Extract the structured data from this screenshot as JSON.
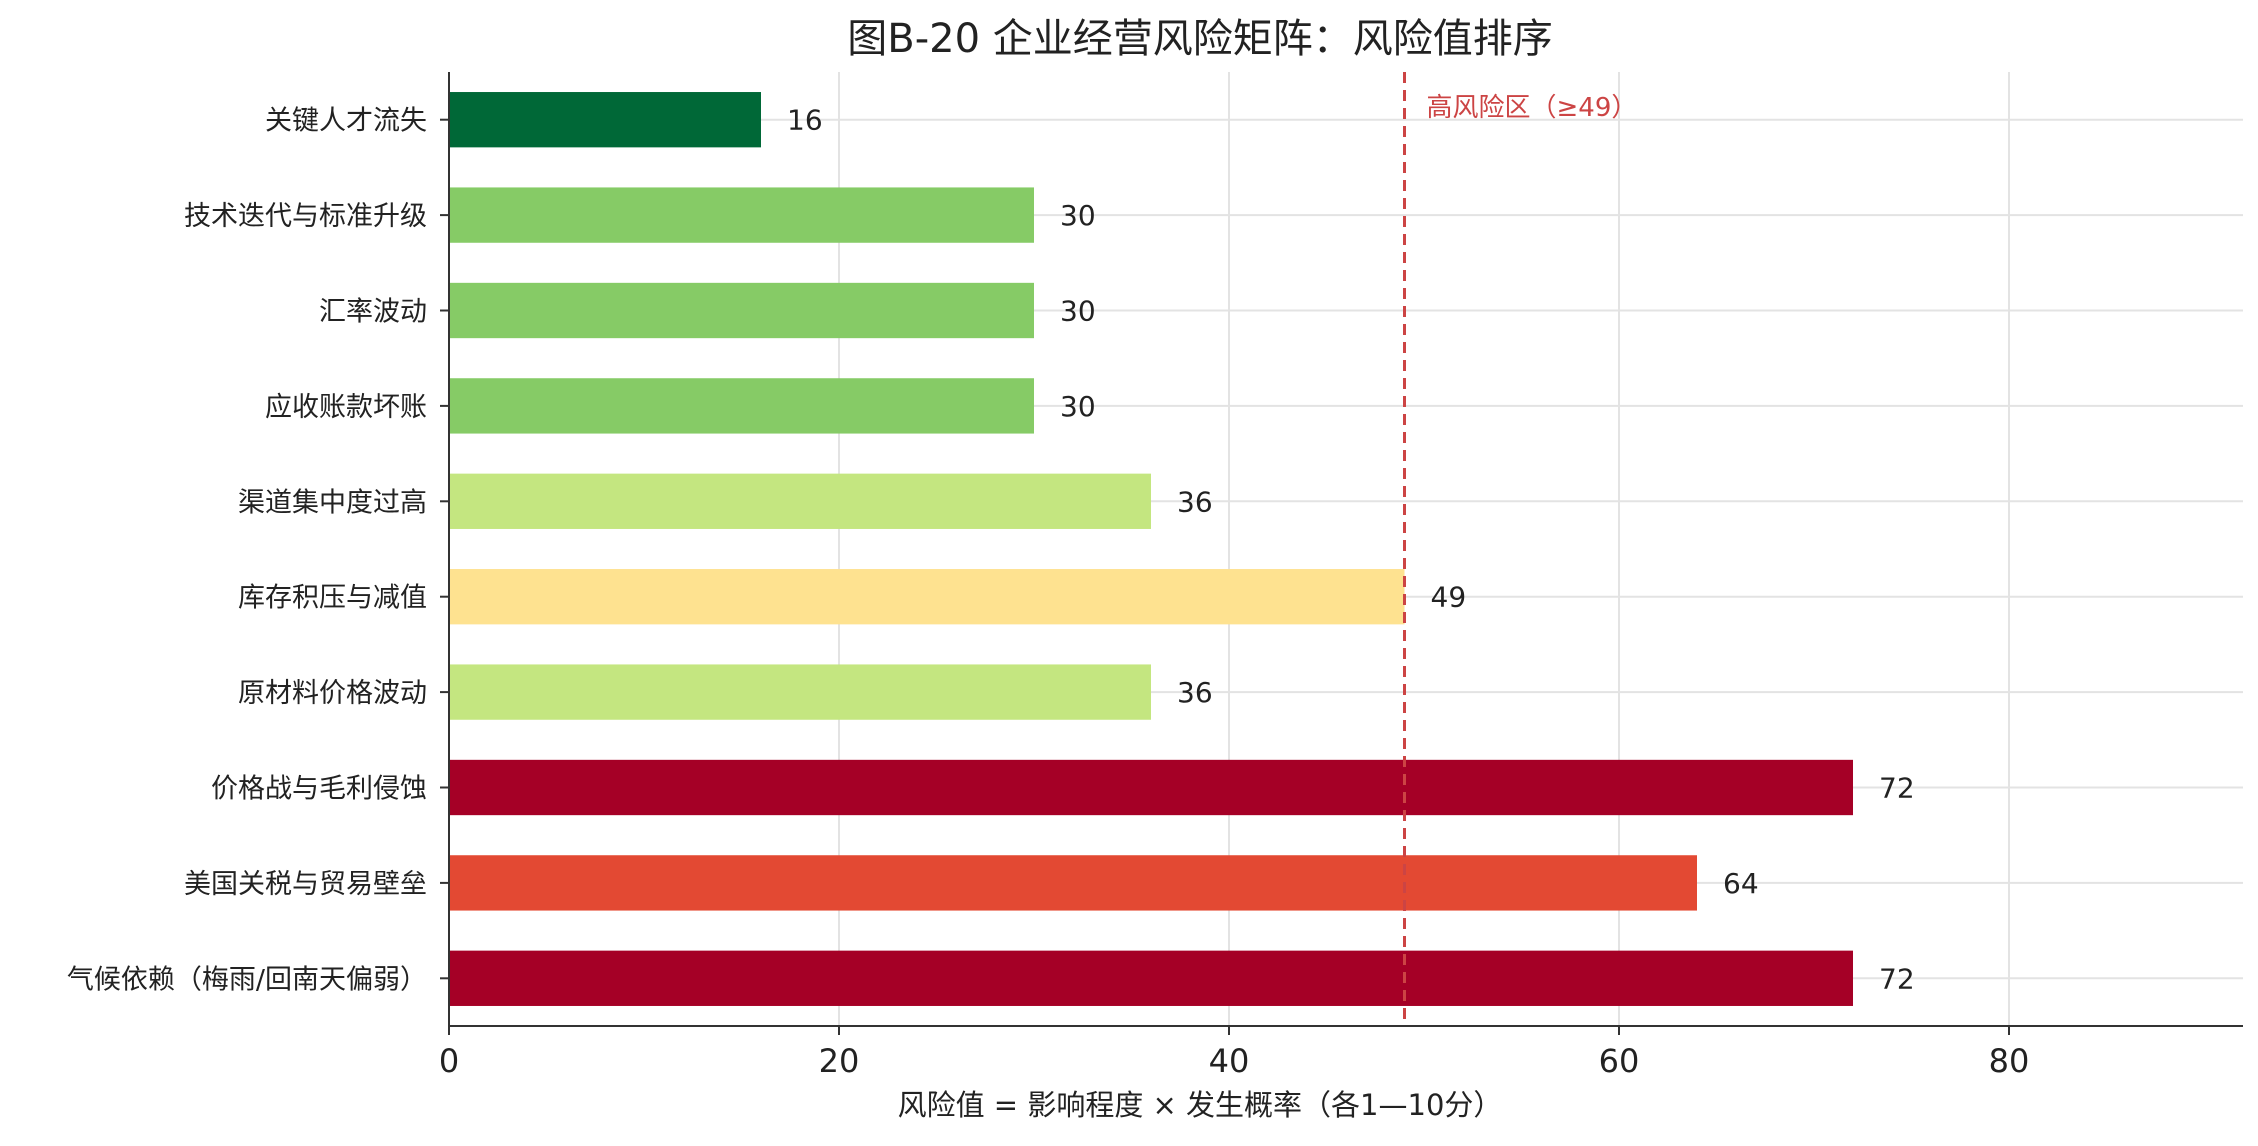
{
  "chart_data": {
    "type": "bar",
    "orientation": "horizontal",
    "title": "图B-20  企业经营风险矩阵：风险值排序",
    "xlabel": "风险值 = 影响程度 × 发生概率（各1—10分）",
    "ylabel": "",
    "xlim": [
      0,
      92
    ],
    "xticks": [
      0,
      20,
      40,
      60,
      80
    ],
    "grid": true,
    "categories": [
      "关键人才流失",
      "技术迭代与标准升级",
      "汇率波动",
      "应收账款坏账",
      "渠道集中度过高",
      "库存积压与减值",
      "原材料价格波动",
      "价格战与毛利侵蚀",
      "美国关税与贸易壁垒",
      "气候依赖（梅雨/回南天偏弱）"
    ],
    "values": [
      16,
      30,
      30,
      30,
      36,
      49,
      36,
      72,
      64,
      72
    ],
    "bar_colors": [
      "#006837",
      "#86cb66",
      "#86cb66",
      "#86cb66",
      "#c4e680",
      "#fee290",
      "#c4e680",
      "#a50026",
      "#e34933",
      "#a50026"
    ],
    "data_labels": [
      "16",
      "30",
      "30",
      "30",
      "36",
      "49",
      "36",
      "72",
      "64",
      "72"
    ],
    "threshold": {
      "value": 49,
      "label": "高风险区（≥49）",
      "color": "#cc4444",
      "style": "dashed"
    }
  }
}
